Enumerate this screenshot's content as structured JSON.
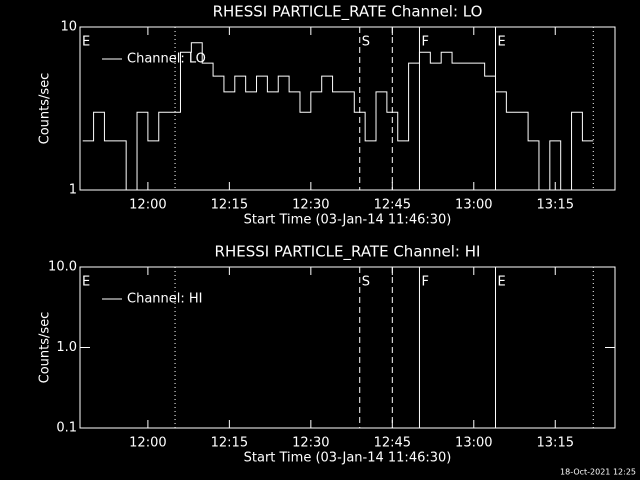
{
  "chart_data": [
    {
      "type": "line",
      "title": "RHESSI PARTICLE_RATE Channel: LO",
      "x_label": "Start Time (03-Jan-14 11:46:30)",
      "y_label": "Counts/sec",
      "log_y": true,
      "step": true,
      "legend": "upper left",
      "color": "#ffffff",
      "xlim": [
        "11:47:30",
        "13:26"
      ],
      "xticks": [
        "12:00",
        "12:15",
        "12:30",
        "12:45",
        "13:00",
        "13:15"
      ],
      "ylim": [
        1,
        10
      ],
      "yticks": [
        1,
        10
      ],
      "x": [
        "11:48",
        "11:50",
        "11:52",
        "11:54",
        "11:56",
        "11:58",
        "12:00",
        "12:02",
        "12:04",
        "12:06",
        "12:08",
        "12:10",
        "12:12",
        "12:14",
        "12:16",
        "12:18",
        "12:20",
        "12:22",
        "12:24",
        "12:26",
        "12:28",
        "12:30",
        "12:32",
        "12:34",
        "12:36",
        "12:38",
        "12:40",
        "12:42",
        "12:44",
        "12:46",
        "12:48",
        "12:50",
        "12:52",
        "12:54",
        "12:56",
        "12:58",
        "13:00",
        "13:02",
        "13:04",
        "13:06",
        "13:08",
        "13:10",
        "13:12",
        "13:14",
        "13:16",
        "13:18",
        "13:20",
        "13:22"
      ],
      "series": [
        {
          "name": "Channel: LO",
          "color": "#ffffff",
          "values": [
            2,
            3,
            2,
            2,
            1,
            3,
            2,
            3,
            3,
            7,
            8,
            6,
            5,
            4,
            5,
            4,
            5,
            4,
            5,
            4,
            3,
            4,
            5,
            4,
            4,
            3,
            2,
            4,
            3,
            2,
            6,
            7,
            6,
            7,
            6,
            6,
            6,
            5,
            4,
            3,
            3,
            2,
            1,
            2,
            1,
            3,
            2,
            2
          ]
        }
      ],
      "vlines": [
        {
          "x": "12:05",
          "style": "dotted"
        },
        {
          "x": "12:39",
          "style": "dashed"
        },
        {
          "x": "12:45",
          "style": "dashed"
        },
        {
          "x": "12:50",
          "style": "solid"
        },
        {
          "x": "13:04",
          "style": "solid"
        },
        {
          "x": "13:22",
          "style": "dotted"
        }
      ],
      "annotations": [
        {
          "text": "E",
          "x": "11:47:30"
        },
        {
          "text": "S",
          "x": "12:39"
        },
        {
          "text": "F",
          "x": "12:50"
        },
        {
          "text": "E",
          "x": "13:04"
        }
      ]
    },
    {
      "type": "line",
      "title": "RHESSI PARTICLE_RATE Channel: HI",
      "x_label": "Start Time (03-Jan-14 11:46:30)",
      "y_label": "Counts/sec",
      "log_y": true,
      "step": true,
      "legend": "upper left",
      "color": "#ffffff",
      "xlim": [
        "11:47:30",
        "13:26"
      ],
      "xticks": [
        "12:00",
        "12:15",
        "12:30",
        "12:45",
        "13:00",
        "13:15"
      ],
      "ylim": [
        0.1,
        10
      ],
      "yticks": [
        {
          "value": 0.1,
          "label": "0.1"
        },
        {
          "value": 1,
          "label": "1.0"
        },
        {
          "value": 10,
          "label": "10.0"
        }
      ],
      "x": [],
      "series": [
        {
          "name": "Channel: HI",
          "color": "#ffffff",
          "values": []
        }
      ],
      "vlines": [
        {
          "x": "12:05",
          "style": "dotted"
        },
        {
          "x": "12:39",
          "style": "dashed"
        },
        {
          "x": "12:45",
          "style": "dashed"
        },
        {
          "x": "12:50",
          "style": "solid"
        },
        {
          "x": "13:04",
          "style": "solid"
        },
        {
          "x": "13:22",
          "style": "dotted"
        }
      ],
      "annotations": [
        {
          "text": "E",
          "x": "11:47:30"
        },
        {
          "text": "S",
          "x": "12:39"
        },
        {
          "text": "F",
          "x": "12:50"
        },
        {
          "text": "E",
          "x": "13:04"
        }
      ]
    }
  ],
  "footer": "18-Oct-2021 12:25"
}
